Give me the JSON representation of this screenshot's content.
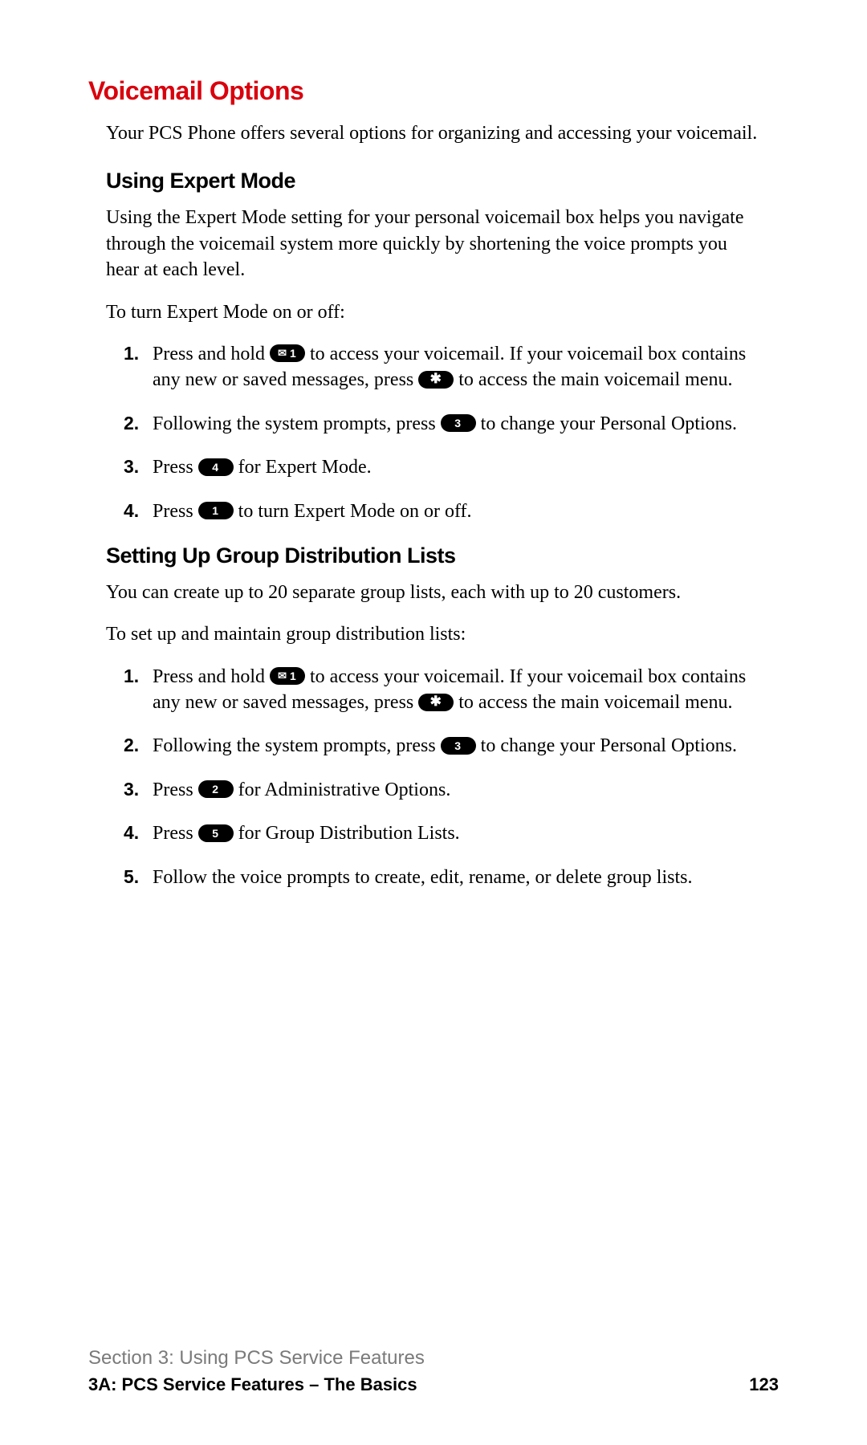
{
  "colors": {
    "title_color": "#d9000d",
    "text_color": "#000000",
    "key_bg": "#000000",
    "key_fg": "#ffffff",
    "footer_section_color": "#7a7a7a",
    "background": "#ffffff"
  },
  "typography": {
    "title_fontsize_pt": 24,
    "subheading_fontsize_pt": 20,
    "body_fontsize_pt": 18,
    "footer_section_fontsize_pt": 18,
    "footer_sub_fontsize_pt": 16,
    "heading_family": "Helvetica Neue Condensed Bold",
    "body_family": "Georgia / ITC New Baskerville"
  },
  "title": "Voicemail Options",
  "intro": "Your PCS Phone offers several options for organizing and accessing your voicemail.",
  "sections": {
    "expert": {
      "heading": "Using Expert Mode",
      "para": "Using the Expert Mode setting for your personal voicemail box helps you navigate through the voicemail system more quickly by shortening the voice prompts you hear at each level.",
      "lead": "To turn Expert Mode on or off:",
      "steps": [
        {
          "pre1": "Press and hold ",
          "key1": {
            "type": "mail",
            "label": "1"
          },
          "mid": " to access your voicemail. If your voicemail box contains any new or saved messages, press ",
          "key2": {
            "type": "star",
            "label": "✱"
          },
          "post": " to access the main voicemail menu."
        },
        {
          "pre1": "Following the system prompts, press ",
          "key1": {
            "type": "num",
            "label": "3"
          },
          "post": " to change your Personal Options."
        },
        {
          "pre1": "Press ",
          "key1": {
            "type": "num",
            "label": "4"
          },
          "post": " for Expert Mode."
        },
        {
          "pre1": "Press ",
          "key1": {
            "type": "num",
            "label": "1"
          },
          "post": " to turn Expert Mode on or off."
        }
      ]
    },
    "groups": {
      "heading": "Setting Up Group Distribution Lists",
      "para": "You can create up to 20 separate group lists, each with up to 20 customers.",
      "lead": "To set up and maintain group distribution lists:",
      "steps": [
        {
          "pre1": "Press and hold ",
          "key1": {
            "type": "mail",
            "label": "1"
          },
          "mid": " to access your voicemail. If your voicemail box contains any new or saved messages, press ",
          "key2": {
            "type": "star",
            "label": "✱"
          },
          "post": " to access the main voicemail menu."
        },
        {
          "pre1": "Following the system prompts, press ",
          "key1": {
            "type": "num",
            "label": "3"
          },
          "post": " to change your Personal Options."
        },
        {
          "pre1": "Press ",
          "key1": {
            "type": "num",
            "label": "2"
          },
          "post": " for Administrative Options."
        },
        {
          "pre1": "Press ",
          "key1": {
            "type": "num",
            "label": "5"
          },
          "post": " for Group Distribution Lists."
        },
        {
          "plain": "Follow the voice prompts to create, edit, rename, or delete group lists."
        }
      ]
    }
  },
  "footer": {
    "section": "Section 3: Using PCS Service Features",
    "subsection": "3A: PCS Service Features – The Basics",
    "page_number": "123"
  }
}
